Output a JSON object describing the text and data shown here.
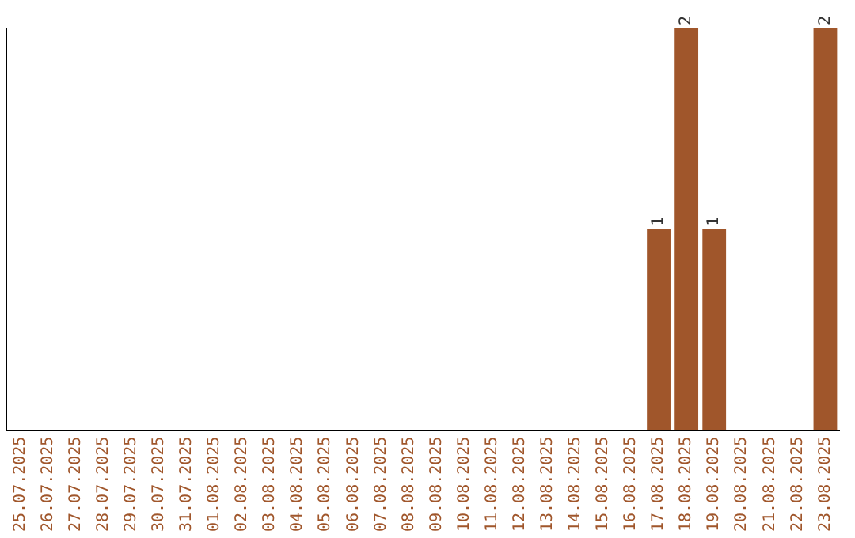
{
  "chart_data": {
    "type": "bar",
    "categories": [
      "25.07.2025",
      "26.07.2025",
      "27.07.2025",
      "28.07.2025",
      "29.07.2025",
      "30.07.2025",
      "31.07.2025",
      "01.08.2025",
      "02.08.2025",
      "03.08.2025",
      "04.08.2025",
      "05.08.2025",
      "06.08.2025",
      "07.08.2025",
      "08.08.2025",
      "09.08.2025",
      "10.08.2025",
      "11.08.2025",
      "12.08.2025",
      "13.08.2025",
      "14.08.2025",
      "15.08.2025",
      "16.08.2025",
      "17.08.2025",
      "18.08.2025",
      "19.08.2025",
      "20.08.2025",
      "21.08.2025",
      "22.08.2025",
      "23.08.2025"
    ],
    "values": [
      null,
      null,
      null,
      null,
      null,
      null,
      null,
      null,
      null,
      null,
      null,
      null,
      null,
      null,
      null,
      null,
      null,
      null,
      null,
      null,
      null,
      null,
      null,
      1,
      2,
      1,
      null,
      null,
      null,
      2
    ],
    "color": "#a0562b",
    "data_labels": true,
    "grid": false,
    "legend": false
  }
}
